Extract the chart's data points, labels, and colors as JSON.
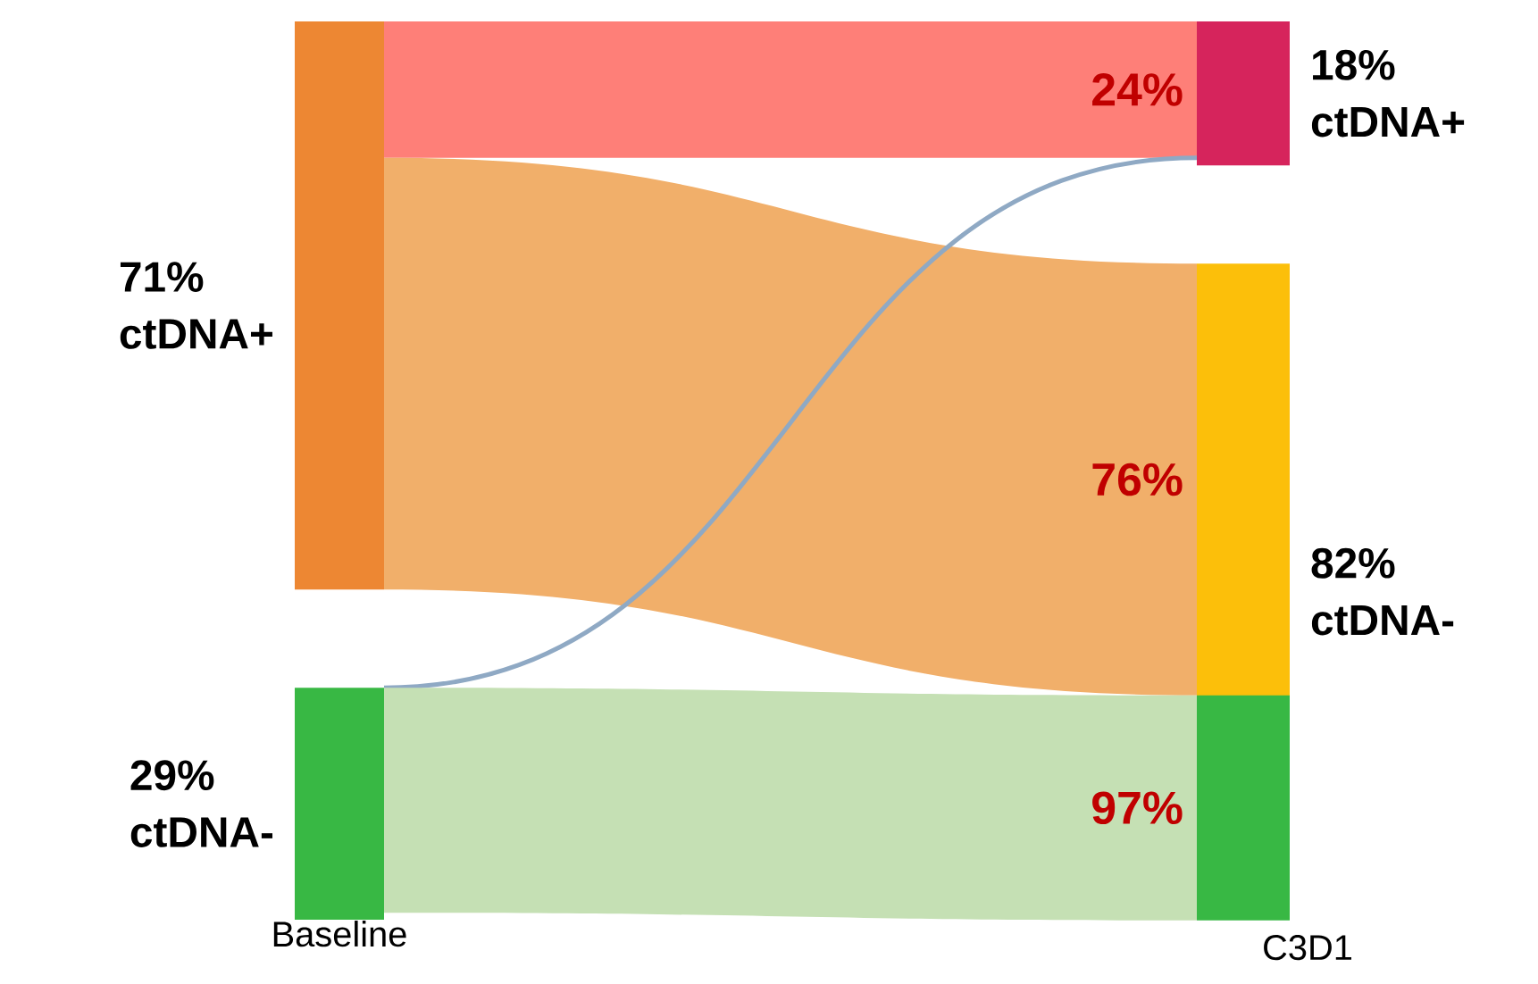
{
  "chart_data": {
    "type": "other",
    "categories": [
      "ctDNA+",
      "ctDNA-"
    ],
    "series": [
      {
        "name": "Baseline",
        "colors": [
          "#ed8733",
          "#38b844"
        ],
        "values": [
          71,
          29
        ],
        "value_labels": [
          "71%",
          "29%"
        ]
      },
      {
        "name": "C3D1",
        "colors": [
          "#d6245c",
          "#fcbf0a"
        ],
        "values": [
          18,
          82
        ],
        "value_labels": [
          "18%",
          "82%"
        ]
      },
      {
        "colors": [
          "#fe7f78",
          "#f1af6a"
        ],
        "values": [
          24,
          76
        ],
        "value_labels": [
          "24%",
          "76%"
        ]
      },
      {
        "colors": [
          "#8fa9c4",
          "#c5e0b4"
        ],
        "values": [
          null,
          97
        ],
        "value_labels": [
          null,
          "97%"
        ]
      }
    ]
  }
}
